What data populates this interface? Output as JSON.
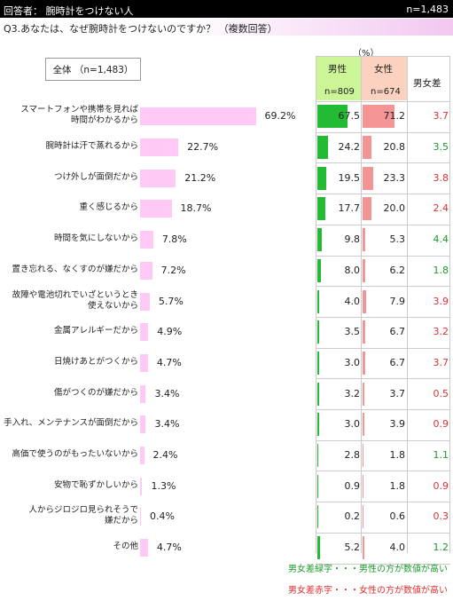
{
  "header": {
    "respondent": "回答者： 腕時計をつけない人",
    "n": "n=1,483"
  },
  "question": "Q3.あなたは、なぜ腕時計をつけないのですか？ （複数回答）",
  "unit": "（%）",
  "overall_label": "全体 （n=1,483）",
  "columns": {
    "male": "男性",
    "male_n": "n=809",
    "female": "女性",
    "female_n": "n=674",
    "diff": "男女差"
  },
  "footnotes": {
    "green": "男女差緑字・・・男性の方が数値が高い",
    "red": "男女差赤字・・・女性の方が数値が高い"
  },
  "colors": {
    "overall_bar": "#ffc8f5",
    "male_bar": "#22bb33",
    "female_bar": "#f49494",
    "green_text": "#1a9a2a",
    "red_text": "#e03030",
    "male_header": "#ccf598",
    "female_header": "#fbd2bf"
  },
  "chart_data": {
    "type": "bar",
    "title": "",
    "xlabel": "",
    "ylabel": "",
    "xlim": [
      0,
      100
    ],
    "categories": [
      [
        "スマートフォンや携帯を見れば",
        "時間がわかるから"
      ],
      [
        "腕時計は汗で蒸れるから"
      ],
      [
        "つけ外しが面倒だから"
      ],
      [
        "重く感じるから"
      ],
      [
        "時間を気にしないから"
      ],
      [
        "置き忘れる、なくすのが嫌だから"
      ],
      [
        "故障や電池切れでいざというとき",
        "使えないから"
      ],
      [
        "金属アレルギーだから"
      ],
      [
        "日焼けあとがつくから"
      ],
      [
        "傷がつくのが嫌だから"
      ],
      [
        "手入れ、メンテナンスが面倒だから"
      ],
      [
        "高価で使うのがもったいないから"
      ],
      [
        "安物で恥ずかしいから"
      ],
      [
        "人からジロジロ見られそうで",
        "嫌だから"
      ],
      [
        "その他"
      ]
    ],
    "series": [
      {
        "name": "全体",
        "values": [
          69.2,
          22.7,
          21.2,
          18.7,
          7.8,
          7.2,
          5.7,
          4.9,
          4.7,
          3.4,
          3.4,
          2.4,
          1.3,
          0.4,
          4.7
        ]
      },
      {
        "name": "男性",
        "values": [
          67.5,
          24.2,
          19.5,
          17.7,
          9.8,
          8.0,
          4.0,
          3.5,
          3.0,
          3.2,
          3.0,
          2.8,
          0.9,
          0.2,
          5.2
        ]
      },
      {
        "name": "女性",
        "values": [
          71.2,
          20.8,
          23.3,
          20.0,
          5.3,
          6.2,
          7.9,
          6.7,
          6.7,
          3.7,
          3.9,
          1.8,
          1.8,
          0.6,
          4.0
        ]
      },
      {
        "name": "男女差",
        "values": [
          3.7,
          3.5,
          3.8,
          2.4,
          4.4,
          1.8,
          3.9,
          3.2,
          3.7,
          0.5,
          0.9,
          1.1,
          0.9,
          0.3,
          1.2
        ]
      }
    ]
  }
}
